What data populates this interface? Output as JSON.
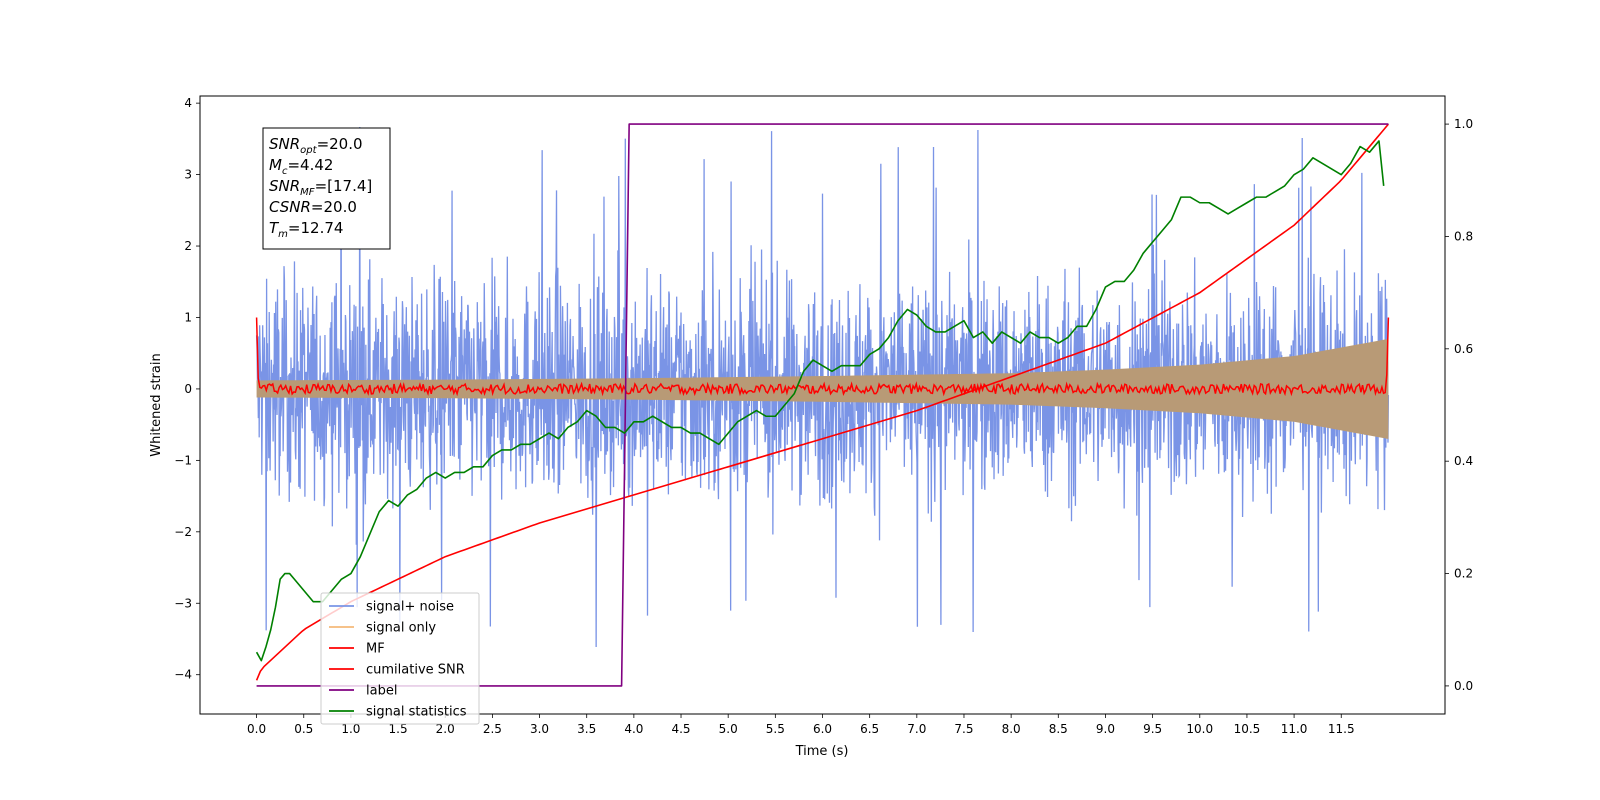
{
  "chart_data": {
    "type": "line",
    "xlabel": "Time (s)",
    "ylabel": "Whitened strain",
    "xlim": [
      -0.6,
      12.6
    ],
    "ylim": [
      -4.55,
      4.1
    ],
    "y2lim": [
      -0.05,
      1.05
    ],
    "x_ticks": [
      "0.0",
      "0.5",
      "1.0",
      "1.5",
      "2.0",
      "2.5",
      "3.0",
      "3.5",
      "4.0",
      "4.5",
      "5.0",
      "5.5",
      "6.0",
      "6.5",
      "7.0",
      "7.5",
      "8.0",
      "8.5",
      "9.0",
      "9.5",
      "10.0",
      "10.5",
      "11.0",
      "11.5"
    ],
    "y_ticks": [
      "4",
      "3",
      "2",
      "1",
      "0",
      "−1",
      "−2",
      "−3",
      "−4"
    ],
    "y2_ticks": [
      "1.0",
      "0.8",
      "0.6",
      "0.4",
      "0.2",
      "0.0"
    ],
    "grid": false,
    "legend_position": "lower-left",
    "info_box": [
      {
        "base": "SNR",
        "sub": "opt",
        "text": "=20.0"
      },
      {
        "base": "M",
        "sub": "c",
        "text": "=4.42"
      },
      {
        "base": "SNR",
        "sub": "MF",
        "text": "=[17.4]"
      },
      {
        "base": "CSNR",
        "sub": "",
        "text": "=20.0"
      },
      {
        "base": "T",
        "sub": "m",
        "text": "=12.74"
      }
    ],
    "series": [
      {
        "name": "signal+ noise",
        "color": "#7a94e6",
        "axis": "left",
        "description_values": {
          "x_start": 0.0,
          "x_end": 12.0,
          "typical_range": [
            -1.7,
            1.7
          ],
          "max": 3.7,
          "min": -4.15
        }
      },
      {
        "name": "signal only",
        "color": "#f4b97a",
        "axis": "left",
        "envelope": {
          "x": [
            0.0,
            2.0,
            4.0,
            6.0,
            8.0,
            9.0,
            10.0,
            11.0,
            12.0
          ],
          "amplitude": [
            0.12,
            0.13,
            0.15,
            0.18,
            0.22,
            0.27,
            0.34,
            0.46,
            0.7
          ]
        }
      },
      {
        "name": "MF",
        "color": "#ff0000",
        "axis": "left",
        "description_values": {
          "x_start": 0.0,
          "x_end": 12.0,
          "start_value": 1.0,
          "end_value": 1.0,
          "typical_range": [
            -0.08,
            0.08
          ]
        }
      },
      {
        "name": "cumilative SNR",
        "color": "#ff0000",
        "axis": "right",
        "x": [
          0.0,
          0.05,
          0.5,
          1.0,
          2.0,
          3.0,
          4.0,
          5.0,
          6.0,
          7.0,
          8.0,
          9.0,
          10.0,
          10.5,
          11.0,
          11.5,
          12.0
        ],
        "values": [
          0.01,
          0.03,
          0.1,
          0.15,
          0.23,
          0.29,
          0.34,
          0.39,
          0.44,
          0.49,
          0.55,
          0.61,
          0.7,
          0.76,
          0.82,
          0.9,
          1.0
        ]
      },
      {
        "name": "label",
        "color": "#800080",
        "axis": "right",
        "x": [
          0.0,
          3.87,
          3.95,
          12.0
        ],
        "values": [
          0.0,
          0.0,
          1.0,
          1.0
        ]
      },
      {
        "name": "signal statistics",
        "color": "#008000",
        "axis": "right",
        "x": [
          0.0,
          0.05,
          0.1,
          0.15,
          0.2,
          0.25,
          0.3,
          0.35,
          0.4,
          0.45,
          0.5,
          0.55,
          0.6,
          0.65,
          0.7,
          0.75,
          0.8,
          0.9,
          1.0,
          1.1,
          1.2,
          1.3,
          1.4,
          1.5,
          1.6,
          1.7,
          1.8,
          1.9,
          2.0,
          2.1,
          2.2,
          2.3,
          2.4,
          2.5,
          2.6,
          2.7,
          2.8,
          2.9,
          3.0,
          3.1,
          3.2,
          3.3,
          3.4,
          3.5,
          3.6,
          3.7,
          3.8,
          3.9,
          4.0,
          4.1,
          4.2,
          4.3,
          4.4,
          4.5,
          4.6,
          4.7,
          4.8,
          4.9,
          5.0,
          5.1,
          5.2,
          5.3,
          5.4,
          5.5,
          5.6,
          5.7,
          5.8,
          5.9,
          6.0,
          6.1,
          6.2,
          6.3,
          6.4,
          6.5,
          6.6,
          6.7,
          6.8,
          6.9,
          7.0,
          7.1,
          7.2,
          7.3,
          7.4,
          7.5,
          7.6,
          7.7,
          7.8,
          7.9,
          8.0,
          8.1,
          8.2,
          8.3,
          8.4,
          8.5,
          8.6,
          8.7,
          8.8,
          8.9,
          9.0,
          9.1,
          9.2,
          9.3,
          9.4,
          9.5,
          9.6,
          9.7,
          9.8,
          9.9,
          10.0,
          10.1,
          10.2,
          10.3,
          10.4,
          10.5,
          10.6,
          10.7,
          10.8,
          10.9,
          11.0,
          11.1,
          11.2,
          11.3,
          11.4,
          11.5,
          11.6,
          11.7,
          11.8,
          11.9,
          11.95
        ],
        "values": [
          0.06,
          0.045,
          0.07,
          0.1,
          0.14,
          0.19,
          0.2,
          0.2,
          0.19,
          0.18,
          0.17,
          0.16,
          0.15,
          0.15,
          0.15,
          0.16,
          0.17,
          0.19,
          0.2,
          0.23,
          0.27,
          0.31,
          0.33,
          0.32,
          0.34,
          0.35,
          0.37,
          0.38,
          0.37,
          0.38,
          0.38,
          0.39,
          0.39,
          0.41,
          0.42,
          0.42,
          0.43,
          0.43,
          0.44,
          0.45,
          0.44,
          0.46,
          0.47,
          0.49,
          0.48,
          0.46,
          0.46,
          0.45,
          0.47,
          0.47,
          0.48,
          0.47,
          0.46,
          0.46,
          0.45,
          0.45,
          0.44,
          0.43,
          0.45,
          0.47,
          0.48,
          0.49,
          0.48,
          0.48,
          0.5,
          0.52,
          0.56,
          0.58,
          0.57,
          0.56,
          0.57,
          0.57,
          0.57,
          0.59,
          0.6,
          0.62,
          0.65,
          0.67,
          0.66,
          0.64,
          0.63,
          0.63,
          0.64,
          0.65,
          0.62,
          0.63,
          0.61,
          0.63,
          0.62,
          0.61,
          0.63,
          0.62,
          0.62,
          0.61,
          0.62,
          0.64,
          0.64,
          0.67,
          0.71,
          0.72,
          0.72,
          0.74,
          0.77,
          0.79,
          0.81,
          0.83,
          0.87,
          0.87,
          0.86,
          0.86,
          0.85,
          0.84,
          0.85,
          0.86,
          0.87,
          0.87,
          0.88,
          0.89,
          0.91,
          0.92,
          0.94,
          0.93,
          0.92,
          0.91,
          0.93,
          0.96,
          0.95,
          0.97,
          0.89
        ]
      }
    ]
  }
}
